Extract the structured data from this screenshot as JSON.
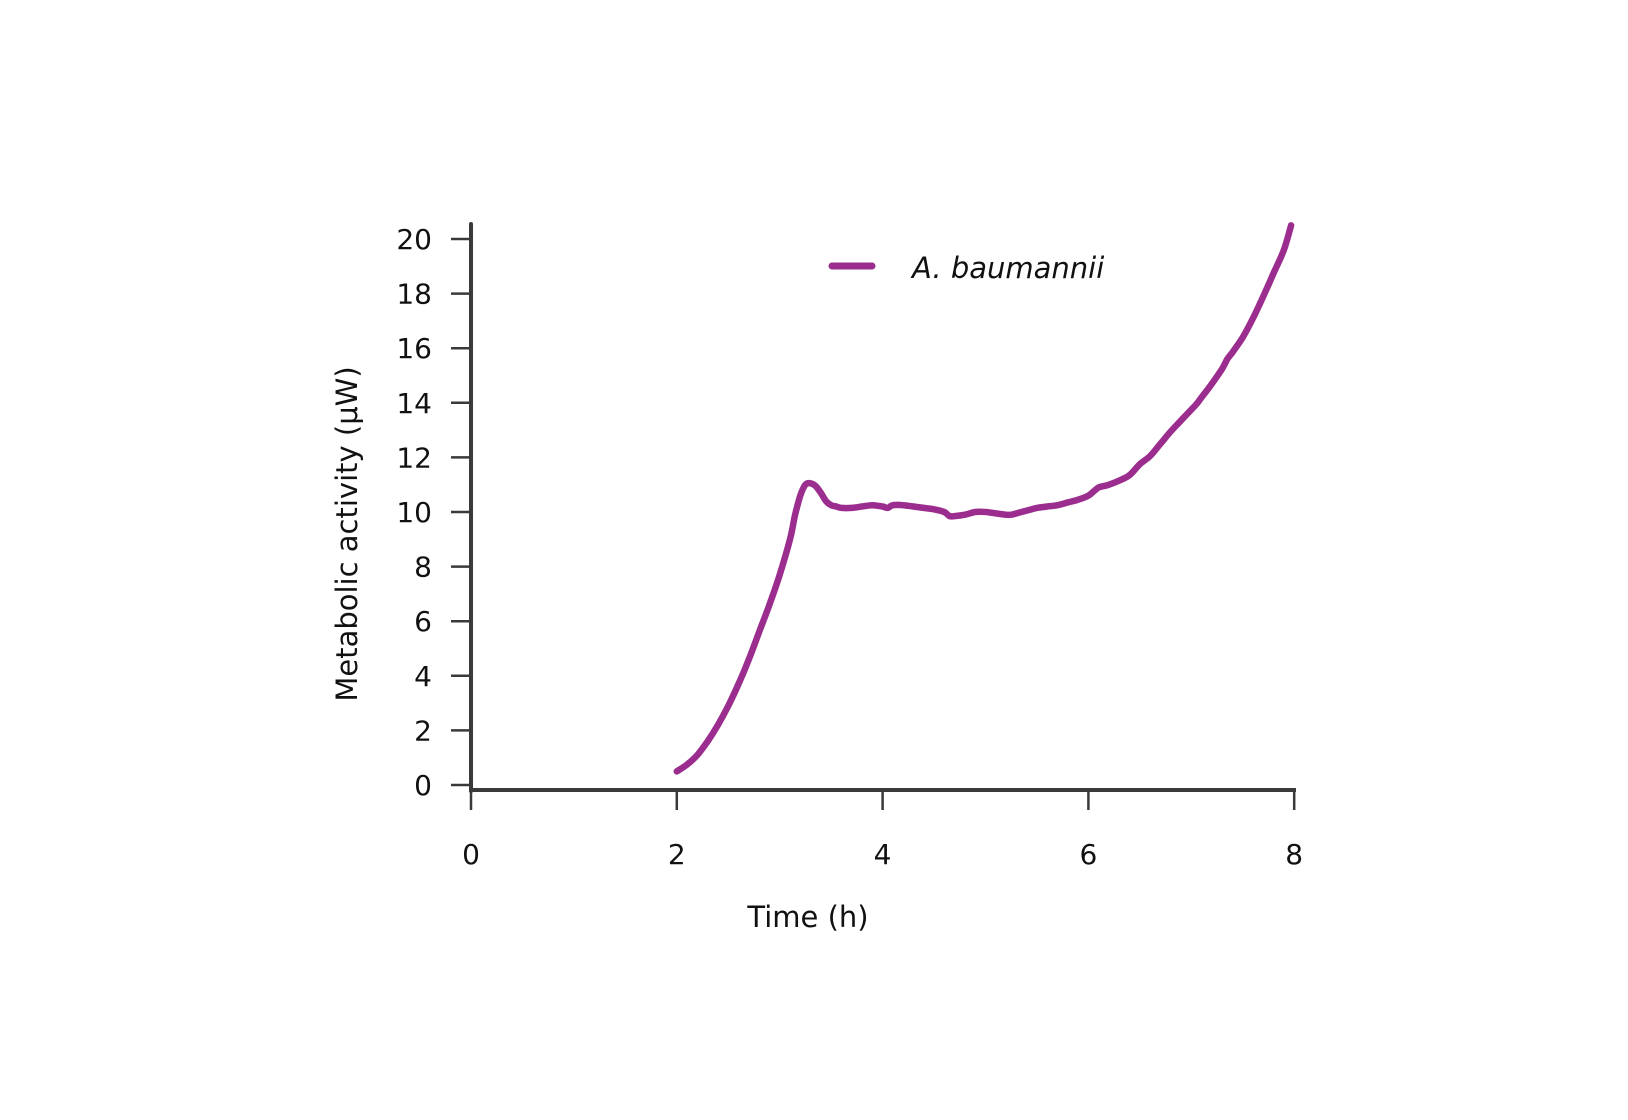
{
  "chart_data": {
    "type": "line",
    "title": "",
    "xlabel": "Time (h)",
    "ylabel": "Metabolic activity (μW)",
    "xlim": [
      0,
      8
    ],
    "ylim": [
      0,
      20.7
    ],
    "xticks": [
      0,
      2,
      4,
      6,
      8
    ],
    "yticks": [
      0,
      2,
      4,
      6,
      8,
      10,
      12,
      14,
      16,
      18,
      20
    ],
    "grid": false,
    "legend_position": "upper center",
    "series": [
      {
        "name": "A. baumannii",
        "color": "#9B2D8E",
        "x": [
          2.0,
          2.1,
          2.2,
          2.3,
          2.4,
          2.5,
          2.6,
          2.7,
          2.8,
          2.9,
          3.0,
          3.1,
          3.15,
          3.2,
          3.25,
          3.3,
          3.35,
          3.4,
          3.45,
          3.5,
          3.55,
          3.6,
          3.7,
          3.8,
          3.9,
          4.0,
          4.05,
          4.1,
          4.2,
          4.3,
          4.4,
          4.5,
          4.6,
          4.65,
          4.7,
          4.8,
          4.9,
          5.0,
          5.1,
          5.2,
          5.25,
          5.3,
          5.4,
          5.5,
          5.6,
          5.7,
          5.8,
          5.9,
          6.0,
          6.05,
          6.1,
          6.15,
          6.2,
          6.3,
          6.4,
          6.5,
          6.6,
          6.7,
          6.8,
          6.9,
          7.0,
          7.05,
          7.1,
          7.2,
          7.3,
          7.35,
          7.4,
          7.5,
          7.6,
          7.7,
          7.8,
          7.9,
          7.97
        ],
        "y": [
          0.5,
          0.75,
          1.1,
          1.6,
          2.2,
          2.9,
          3.7,
          4.6,
          5.6,
          6.6,
          7.7,
          9.0,
          9.9,
          10.6,
          11.0,
          11.05,
          10.95,
          10.7,
          10.4,
          10.25,
          10.2,
          10.15,
          10.15,
          10.2,
          10.25,
          10.2,
          10.15,
          10.25,
          10.25,
          10.2,
          10.15,
          10.1,
          10.0,
          9.85,
          9.85,
          9.9,
          10.0,
          10.0,
          9.95,
          9.9,
          9.9,
          9.95,
          10.05,
          10.15,
          10.2,
          10.25,
          10.35,
          10.45,
          10.6,
          10.75,
          10.9,
          10.95,
          11.0,
          11.15,
          11.35,
          11.75,
          12.05,
          12.5,
          12.95,
          13.35,
          13.75,
          13.95,
          14.2,
          14.7,
          15.25,
          15.6,
          15.85,
          16.4,
          17.1,
          17.9,
          18.75,
          19.6,
          20.5
        ]
      }
    ],
    "legend": [
      {
        "label": "A. baumannii",
        "color": "#9B2D8E"
      }
    ]
  },
  "axes": {
    "x_title": "Time (h)",
    "y_title": "Metabolic activity (μW)",
    "x_tick_labels": [
      "0",
      "2",
      "4",
      "6",
      "8"
    ],
    "y_tick_labels": [
      "0",
      "2",
      "4",
      "6",
      "8",
      "10",
      "12",
      "14",
      "16",
      "18",
      "20"
    ],
    "axis_color": "#3A3A3A"
  },
  "legend": {
    "label": "A. baumannii",
    "color": "#9B2D8E"
  }
}
